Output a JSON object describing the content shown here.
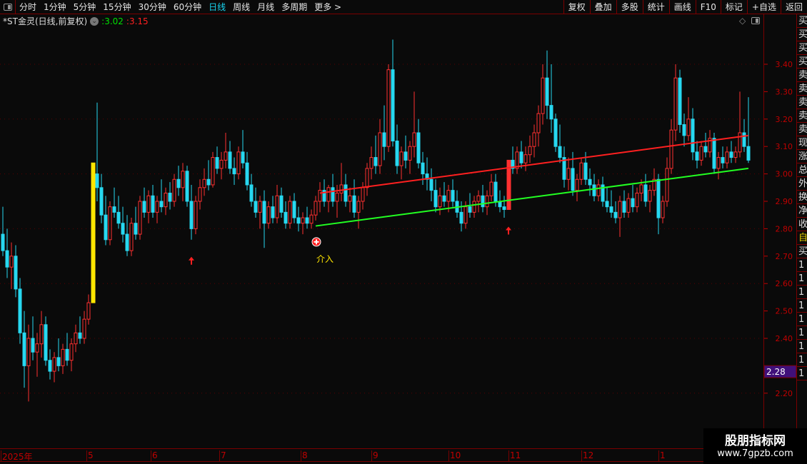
{
  "toolbar": {
    "periods": [
      "分时",
      "1分钟",
      "5分钟",
      "15分钟",
      "30分钟",
      "60分钟",
      "日线",
      "周线",
      "月线",
      "多周期",
      "更多 >"
    ],
    "active_period": "日线",
    "right_tools": [
      "复权",
      "叠加",
      "多股",
      "统计",
      "画线",
      "F10",
      "标记",
      "+自选",
      "返回"
    ]
  },
  "info": {
    "title": "*ST金灵(日线,前复权)",
    "value1": "3.02",
    "value2": "3.15",
    "value1_color": "#00e000",
    "value2_color": "#ff2020"
  },
  "current_price_tag": "2.28",
  "annotation": {
    "label": "介入",
    "icon": "plus-circle-icon",
    "marker_icon": "up-arrow-icon"
  },
  "right_strip": [
    "买",
    "买",
    "买",
    "买",
    "卖",
    "卖",
    "卖",
    "卖",
    "卖",
    "现",
    "涨",
    "总",
    "外",
    "换",
    "净",
    "收",
    "自",
    "买",
    "1",
    "1",
    "1",
    "1",
    "1",
    "1",
    "1",
    "1",
    "1"
  ],
  "watermark": {
    "line1": "股朋指标网",
    "line2": "www.7gpzb.com"
  },
  "colors": {
    "up": "#ff3030",
    "down": "#27d8f0",
    "limit_up": "#ffe600",
    "support": "#22ff22",
    "resistance": "#ff2020",
    "axis": "#c00000",
    "tag_bg": "#40107a"
  },
  "chart_data": {
    "type": "candlestick",
    "ylim": [
      2.1,
      3.55
    ],
    "yticks": [
      3.4,
      3.3,
      3.2,
      3.1,
      3.0,
      2.9,
      2.8,
      2.7,
      2.6,
      2.5,
      2.4,
      2.2
    ],
    "grid": "dotted every 0.20",
    "month_labels": [
      {
        "label": "2025年",
        "index": 0
      },
      {
        "label": "5",
        "index": 19.5
      },
      {
        "label": "6",
        "index": 34.5
      },
      {
        "label": "7",
        "index": 50.5
      },
      {
        "label": "8",
        "index": 69.5
      },
      {
        "label": "9",
        "index": 86
      },
      {
        "label": "10",
        "index": 104
      },
      {
        "label": "11",
        "index": 118
      },
      {
        "label": "12",
        "index": 135
      },
      {
        "label": "1",
        "index": 153
      }
    ],
    "limit_up_index": 21,
    "arrow_indices": [
      44,
      118
    ],
    "entry_index": 73,
    "support_line": {
      "from": [
        73,
        2.81
      ],
      "to": [
        174,
        3.02
      ]
    },
    "resistance_line": {
      "from": [
        74,
        2.93
      ],
      "to": [
        174,
        3.14
      ]
    },
    "candles": [
      [
        2.78,
        2.88,
        2.7,
        2.72
      ],
      [
        2.72,
        2.8,
        2.62,
        2.66
      ],
      [
        2.66,
        2.75,
        2.58,
        2.7
      ],
      [
        2.7,
        2.74,
        2.55,
        2.58
      ],
      [
        2.58,
        2.62,
        2.38,
        2.42
      ],
      [
        2.42,
        2.5,
        2.22,
        2.3
      ],
      [
        2.3,
        2.45,
        2.17,
        2.4
      ],
      [
        2.4,
        2.48,
        2.32,
        2.35
      ],
      [
        2.35,
        2.42,
        2.26,
        2.38
      ],
      [
        2.38,
        2.5,
        2.33,
        2.45
      ],
      [
        2.45,
        2.48,
        2.3,
        2.32
      ],
      [
        2.32,
        2.36,
        2.25,
        2.28
      ],
      [
        2.28,
        2.35,
        2.24,
        2.33
      ],
      [
        2.33,
        2.4,
        2.28,
        2.3
      ],
      [
        2.3,
        2.38,
        2.27,
        2.36
      ],
      [
        2.36,
        2.42,
        2.3,
        2.32
      ],
      [
        2.32,
        2.4,
        2.28,
        2.38
      ],
      [
        2.38,
        2.45,
        2.35,
        2.42
      ],
      [
        2.42,
        2.48,
        2.38,
        2.4
      ],
      [
        2.4,
        2.5,
        2.38,
        2.47
      ],
      [
        2.47,
        2.56,
        2.45,
        2.53
      ],
      [
        2.53,
        3.04,
        2.53,
        3.04
      ],
      [
        3.0,
        3.26,
        2.9,
        2.95
      ],
      [
        2.95,
        3.0,
        2.82,
        2.85
      ],
      [
        2.85,
        2.92,
        2.74,
        2.76
      ],
      [
        2.76,
        2.9,
        2.74,
        2.88
      ],
      [
        2.88,
        2.95,
        2.84,
        2.86
      ],
      [
        2.86,
        2.92,
        2.8,
        2.82
      ],
      [
        2.82,
        2.88,
        2.75,
        2.78
      ],
      [
        2.78,
        2.85,
        2.7,
        2.72
      ],
      [
        2.72,
        2.84,
        2.7,
        2.82
      ],
      [
        2.82,
        2.88,
        2.76,
        2.78
      ],
      [
        2.78,
        2.92,
        2.76,
        2.9
      ],
      [
        2.9,
        2.95,
        2.84,
        2.86
      ],
      [
        2.86,
        2.94,
        2.82,
        2.92
      ],
      [
        2.92,
        2.96,
        2.84,
        2.86
      ],
      [
        2.86,
        2.92,
        2.82,
        2.9
      ],
      [
        2.9,
        2.98,
        2.86,
        2.88
      ],
      [
        2.88,
        2.95,
        2.85,
        2.93
      ],
      [
        2.93,
        2.97,
        2.87,
        2.9
      ],
      [
        2.9,
        3.0,
        2.88,
        2.98
      ],
      [
        2.98,
        3.03,
        2.92,
        2.95
      ],
      [
        2.95,
        3.04,
        2.9,
        3.01
      ],
      [
        3.01,
        3.03,
        2.88,
        2.9
      ],
      [
        2.9,
        2.96,
        2.76,
        2.8
      ],
      [
        2.8,
        2.92,
        2.78,
        2.9
      ],
      [
        2.9,
        2.98,
        2.87,
        2.95
      ],
      [
        2.95,
        3.02,
        2.92,
        2.98
      ],
      [
        2.98,
        3.05,
        2.94,
        2.96
      ],
      [
        2.96,
        3.08,
        2.95,
        3.06
      ],
      [
        3.06,
        3.1,
        3.0,
        3.02
      ],
      [
        3.02,
        3.08,
        2.98,
        3.05
      ],
      [
        3.05,
        3.15,
        3.02,
        3.08
      ],
      [
        3.08,
        3.12,
        3.0,
        3.02
      ],
      [
        3.02,
        3.06,
        2.96,
        3.0
      ],
      [
        3.0,
        3.1,
        2.98,
        3.08
      ],
      [
        3.08,
        3.16,
        3.02,
        3.04
      ],
      [
        3.04,
        3.08,
        2.94,
        2.96
      ],
      [
        2.96,
        3.0,
        2.88,
        2.9
      ],
      [
        2.9,
        2.95,
        2.84,
        2.86
      ],
      [
        2.86,
        2.92,
        2.8,
        2.9
      ],
      [
        2.9,
        2.94,
        2.73,
        2.82
      ],
      [
        2.82,
        2.9,
        2.8,
        2.88
      ],
      [
        2.88,
        2.92,
        2.82,
        2.84
      ],
      [
        2.84,
        2.96,
        2.82,
        2.92
      ],
      [
        2.92,
        2.95,
        2.84,
        2.86
      ],
      [
        2.86,
        2.9,
        2.8,
        2.82
      ],
      [
        2.82,
        2.92,
        2.8,
        2.9
      ],
      [
        2.9,
        2.93,
        2.82,
        2.84
      ],
      [
        2.84,
        2.88,
        2.79,
        2.82
      ],
      [
        2.82,
        2.86,
        2.78,
        2.84
      ],
      [
        2.84,
        2.88,
        2.8,
        2.82
      ],
      [
        2.82,
        2.87,
        2.8,
        2.85
      ],
      [
        2.85,
        2.92,
        2.83,
        2.9
      ],
      [
        2.9,
        2.97,
        2.86,
        2.94
      ],
      [
        2.94,
        2.98,
        2.88,
        2.9
      ],
      [
        2.9,
        2.96,
        2.86,
        2.95
      ],
      [
        2.95,
        3.0,
        2.88,
        2.9
      ],
      [
        2.9,
        2.96,
        2.84,
        2.93
      ],
      [
        2.93,
        3.04,
        2.9,
        2.96
      ],
      [
        2.96,
        3.0,
        2.88,
        2.9
      ],
      [
        2.9,
        2.95,
        2.86,
        2.92
      ],
      [
        2.92,
        2.98,
        2.84,
        2.86
      ],
      [
        2.86,
        2.92,
        2.8,
        2.9
      ],
      [
        2.9,
        2.97,
        2.87,
        2.95
      ],
      [
        2.95,
        3.04,
        2.92,
        3.02
      ],
      [
        3.02,
        3.1,
        2.98,
        3.06
      ],
      [
        3.06,
        3.14,
        3.0,
        3.03
      ],
      [
        3.03,
        3.2,
        3.0,
        3.15
      ],
      [
        3.15,
        3.25,
        3.05,
        3.1
      ],
      [
        3.1,
        3.4,
        3.08,
        3.38
      ],
      [
        3.38,
        3.49,
        3.1,
        3.12
      ],
      [
        3.12,
        3.18,
        3.0,
        3.03
      ],
      [
        3.03,
        3.1,
        2.98,
        3.08
      ],
      [
        3.08,
        3.14,
        3.02,
        3.05
      ],
      [
        3.05,
        3.12,
        3.0,
        3.1
      ],
      [
        3.1,
        3.3,
        3.06,
        3.15
      ],
      [
        3.15,
        3.2,
        3.02,
        3.04
      ],
      [
        3.04,
        3.08,
        2.96,
        3.0
      ],
      [
        3.0,
        3.06,
        2.94,
        2.98
      ],
      [
        2.98,
        3.02,
        2.9,
        2.94
      ],
      [
        2.94,
        2.98,
        2.86,
        2.88
      ],
      [
        2.88,
        2.95,
        2.85,
        2.92
      ],
      [
        2.92,
        2.97,
        2.88,
        2.9
      ],
      [
        2.9,
        2.96,
        2.86,
        2.94
      ],
      [
        2.94,
        2.98,
        2.88,
        2.9
      ],
      [
        2.9,
        2.94,
        2.84,
        2.86
      ],
      [
        2.86,
        2.9,
        2.79,
        2.82
      ],
      [
        2.82,
        2.9,
        2.8,
        2.88
      ],
      [
        2.88,
        2.93,
        2.84,
        2.86
      ],
      [
        2.86,
        2.92,
        2.84,
        2.9
      ],
      [
        2.9,
        2.94,
        2.86,
        2.92
      ],
      [
        2.92,
        2.96,
        2.86,
        2.88
      ],
      [
        2.88,
        2.94,
        2.85,
        2.92
      ],
      [
        2.92,
        3.0,
        2.9,
        2.97
      ],
      [
        2.97,
        3.0,
        2.88,
        2.9
      ],
      [
        2.9,
        2.94,
        2.86,
        2.88
      ],
      [
        2.88,
        2.92,
        2.84,
        2.87
      ],
      [
        2.87,
        3.05,
        2.87,
        3.05
      ],
      [
        3.05,
        3.1,
        3.0,
        3.02
      ],
      [
        3.02,
        3.1,
        3.0,
        3.08
      ],
      [
        3.08,
        3.12,
        3.02,
        3.04
      ],
      [
        3.04,
        3.1,
        3.01,
        3.07
      ],
      [
        3.07,
        3.14,
        3.04,
        3.1
      ],
      [
        3.1,
        3.18,
        3.06,
        3.15
      ],
      [
        3.15,
        3.25,
        3.1,
        3.22
      ],
      [
        3.22,
        3.4,
        3.18,
        3.35
      ],
      [
        3.35,
        3.45,
        3.2,
        3.25
      ],
      [
        3.25,
        3.4,
        3.15,
        3.2
      ],
      [
        3.2,
        3.22,
        3.08,
        3.1
      ],
      [
        3.1,
        3.18,
        3.04,
        3.06
      ],
      [
        3.06,
        3.1,
        2.95,
        2.98
      ],
      [
        2.98,
        3.06,
        2.94,
        3.02
      ],
      [
        3.02,
        3.08,
        2.92,
        2.94
      ],
      [
        2.94,
        3.0,
        2.9,
        2.98
      ],
      [
        2.98,
        3.06,
        2.96,
        3.04
      ],
      [
        3.04,
        3.08,
        2.96,
        2.98
      ],
      [
        2.98,
        3.02,
        2.92,
        2.96
      ],
      [
        2.96,
        3.0,
        2.9,
        2.92
      ],
      [
        2.92,
        2.98,
        2.9,
        2.96
      ],
      [
        2.96,
        2.99,
        2.88,
        2.9
      ],
      [
        2.9,
        2.95,
        2.86,
        2.88
      ],
      [
        2.88,
        2.94,
        2.84,
        2.86
      ],
      [
        2.86,
        2.9,
        2.82,
        2.84
      ],
      [
        2.84,
        2.92,
        2.77,
        2.9
      ],
      [
        2.9,
        2.94,
        2.84,
        2.86
      ],
      [
        2.86,
        2.93,
        2.84,
        2.91
      ],
      [
        2.91,
        2.96,
        2.86,
        2.88
      ],
      [
        2.88,
        2.95,
        2.86,
        2.93
      ],
      [
        2.93,
        2.98,
        2.9,
        2.96
      ],
      [
        2.96,
        3.0,
        2.88,
        2.9
      ],
      [
        2.9,
        2.96,
        2.86,
        2.94
      ],
      [
        2.94,
        3.02,
        2.92,
        2.98
      ],
      [
        2.98,
        3.0,
        2.78,
        2.84
      ],
      [
        2.84,
        2.92,
        2.82,
        2.9
      ],
      [
        2.9,
        3.06,
        2.88,
        3.02
      ],
      [
        3.02,
        3.2,
        3.0,
        3.16
      ],
      [
        3.16,
        3.4,
        3.12,
        3.35
      ],
      [
        3.35,
        3.38,
        3.15,
        3.18
      ],
      [
        3.18,
        3.22,
        3.1,
        3.14
      ],
      [
        3.14,
        3.28,
        3.12,
        3.2
      ],
      [
        3.2,
        3.24,
        3.05,
        3.08
      ],
      [
        3.08,
        3.12,
        3.02,
        3.05
      ],
      [
        3.05,
        3.12,
        3.03,
        3.1
      ],
      [
        3.1,
        3.15,
        3.06,
        3.08
      ],
      [
        3.08,
        3.16,
        3.06,
        3.13
      ],
      [
        3.13,
        3.15,
        3.0,
        3.02
      ],
      [
        3.02,
        3.08,
        2.98,
        3.06
      ],
      [
        3.06,
        3.1,
        3.02,
        3.04
      ],
      [
        3.04,
        3.1,
        3.02,
        3.08
      ],
      [
        3.08,
        3.12,
        3.04,
        3.06
      ],
      [
        3.06,
        3.1,
        3.04,
        3.08
      ],
      [
        3.08,
        3.3,
        3.06,
        3.15
      ],
      [
        3.15,
        3.2,
        3.08,
        3.1
      ],
      [
        3.1,
        3.28,
        3.04,
        3.05
      ]
    ]
  }
}
